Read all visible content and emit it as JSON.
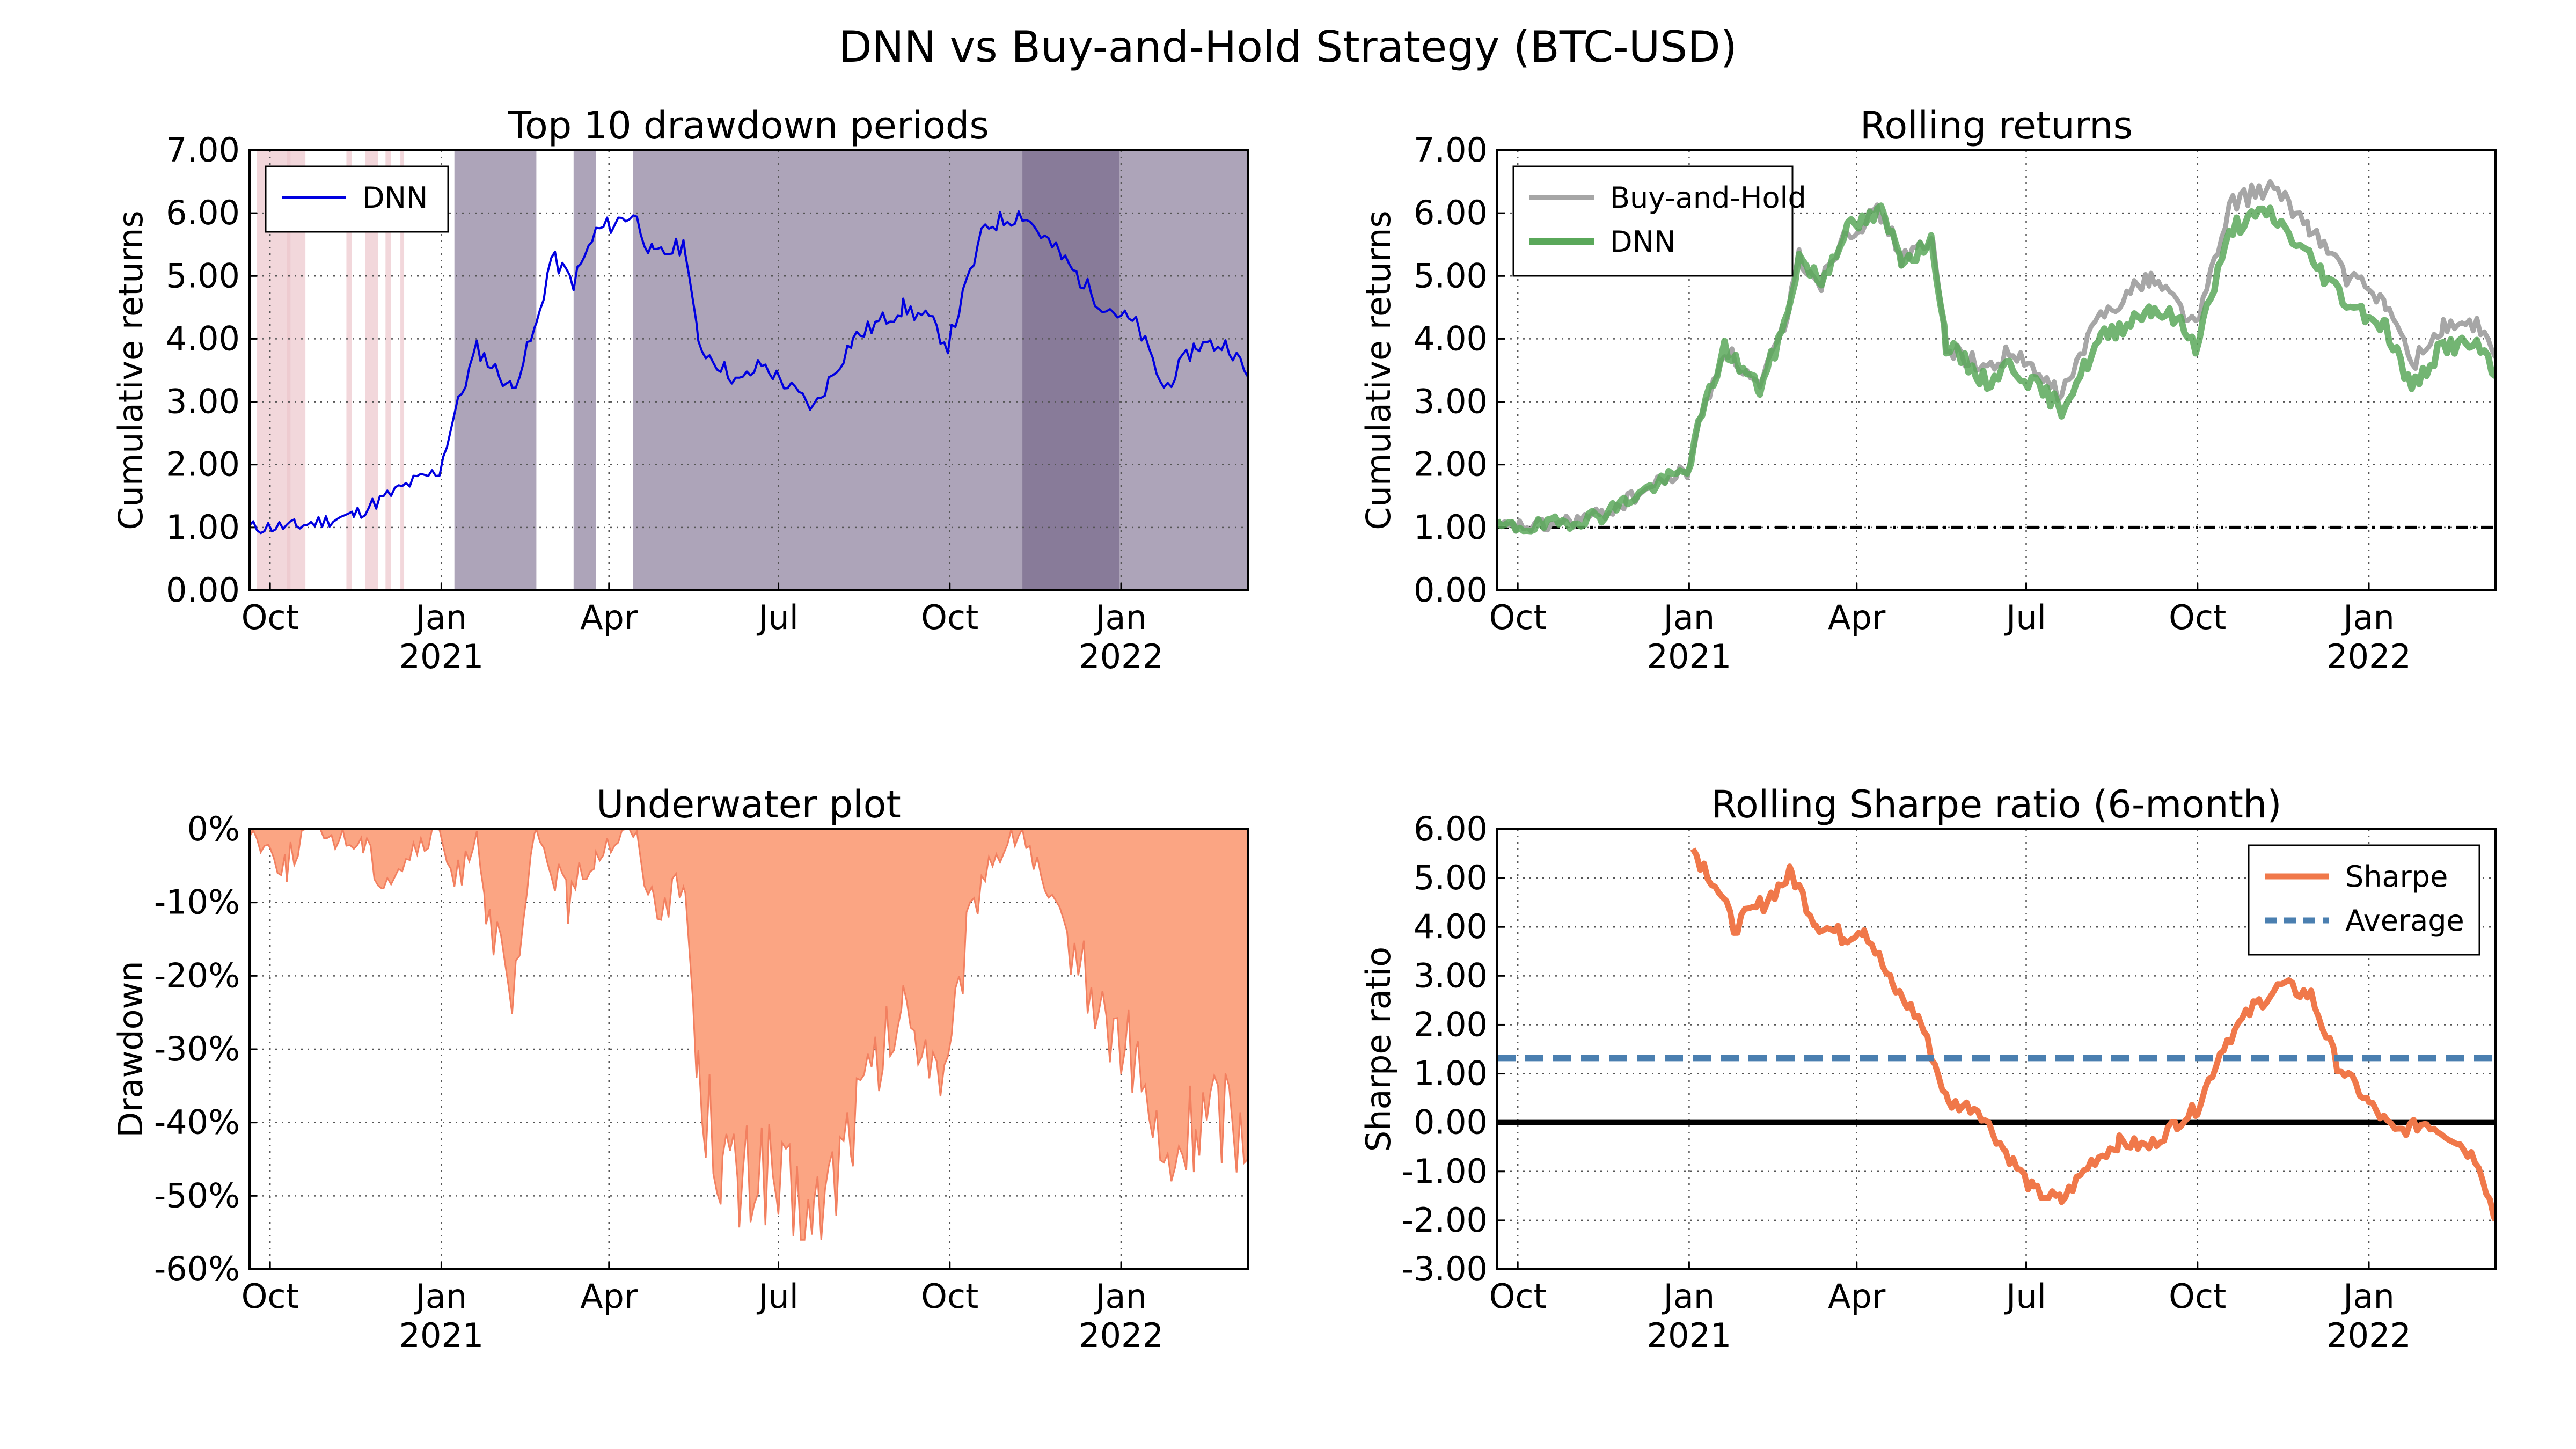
{
  "figure": {
    "title": "DNN vs Buy-and-Hold Strategy (BTC-USD)"
  },
  "x_axis": {
    "month_ticks": [
      "Oct",
      "Jan",
      "Apr",
      "Jul",
      "Oct",
      "Jan"
    ],
    "year_ticks": [
      "2021",
      "2022"
    ]
  },
  "colors": {
    "dnn_line": "#0000e0",
    "buy_hold": "#a6a6a6",
    "dnn_rolling": "#5aa85a",
    "underwater": "#fba583",
    "sharpe": "#f0784a",
    "average": "#4a7fb0",
    "drawdown_shade_light": "#ecc6cc",
    "drawdown_shade_dark": "#6a5a80"
  },
  "chart_data": [
    {
      "id": "drawdown_periods",
      "type": "line",
      "title": "Top 10 drawdown periods",
      "ylabel": "Cumulative returns",
      "xlabel": "",
      "ylim": [
        0,
        7
      ],
      "yticks": [
        "0.00",
        "1.00",
        "2.00",
        "3.00",
        "4.00",
        "5.00",
        "6.00",
        "7.00"
      ],
      "legend": "top-left",
      "series": [
        {
          "name": "DNN",
          "x": [
            "2020-09-20",
            "2020-10-15",
            "2020-11-15",
            "2020-12-15",
            "2020-12-31",
            "2021-01-08",
            "2021-01-20",
            "2021-02-08",
            "2021-02-21",
            "2021-03-01",
            "2021-03-13",
            "2021-03-25",
            "2021-04-14",
            "2021-04-25",
            "2021-05-12",
            "2021-05-19",
            "2021-06-10",
            "2021-06-22",
            "2021-07-20",
            "2021-08-10",
            "2021-09-06",
            "2021-09-20",
            "2021-09-30",
            "2021-10-20",
            "2021-11-09",
            "2021-11-30",
            "2021-12-20",
            "2022-01-10",
            "2022-01-24",
            "2022-02-10",
            "2022-02-28",
            "2022-03-10"
          ],
          "values": [
            1.0,
            1.02,
            1.2,
            1.7,
            1.9,
            2.8,
            3.85,
            3.2,
            4.2,
            5.3,
            4.9,
            5.7,
            6.0,
            5.3,
            5.5,
            3.9,
            3.3,
            3.6,
            2.9,
            4.0,
            4.5,
            4.3,
            3.9,
            5.8,
            6.0,
            5.3,
            4.6,
            4.2,
            3.2,
            3.9,
            3.9,
            3.4
          ]
        }
      ],
      "drawdown_periods": [
        [
          "2020-09-24",
          "2020-10-12"
        ],
        [
          "2020-10-10",
          "2020-10-20"
        ],
        [
          "2020-11-11",
          "2020-11-14"
        ],
        [
          "2020-11-21",
          "2020-11-28"
        ],
        [
          "2020-12-02",
          "2020-12-05"
        ],
        [
          "2020-12-10",
          "2020-12-12"
        ],
        [
          "2021-01-08",
          "2021-02-21"
        ],
        [
          "2021-03-13",
          "2021-03-25"
        ],
        [
          "2021-04-14",
          "2021-12-31"
        ],
        [
          "2021-11-09",
          "2022-03-10"
        ]
      ]
    },
    {
      "id": "rolling_returns",
      "type": "line",
      "title": "Rolling returns",
      "ylabel": "Cumulative returns",
      "xlabel": "",
      "ylim": [
        0,
        7
      ],
      "yticks": [
        "0.00",
        "1.00",
        "2.00",
        "3.00",
        "4.00",
        "5.00",
        "6.00",
        "7.00"
      ],
      "legend": "top-left",
      "baseline": 1.0,
      "series": [
        {
          "name": "Buy-and-Hold",
          "x": [
            "2020-09-20",
            "2020-10-15",
            "2020-11-15",
            "2020-12-15",
            "2020-12-31",
            "2021-01-08",
            "2021-01-20",
            "2021-02-08",
            "2021-02-21",
            "2021-03-01",
            "2021-03-13",
            "2021-03-25",
            "2021-04-14",
            "2021-04-25",
            "2021-05-12",
            "2021-05-19",
            "2021-06-10",
            "2021-06-22",
            "2021-07-20",
            "2021-08-10",
            "2021-09-06",
            "2021-09-20",
            "2021-09-30",
            "2021-10-20",
            "2021-11-09",
            "2021-11-30",
            "2021-12-20",
            "2022-01-10",
            "2022-01-24",
            "2022-02-10",
            "2022-02-28",
            "2022-03-10"
          ],
          "values": [
            1.0,
            1.02,
            1.2,
            1.7,
            1.9,
            2.8,
            3.85,
            3.2,
            4.2,
            5.3,
            4.9,
            5.7,
            6.0,
            5.3,
            5.5,
            3.9,
            3.5,
            3.8,
            3.1,
            4.4,
            5.0,
            4.6,
            4.2,
            6.2,
            6.4,
            5.8,
            5.0,
            4.6,
            3.6,
            4.2,
            4.2,
            3.7
          ]
        },
        {
          "name": "DNN",
          "x": [
            "2020-09-20",
            "2020-10-15",
            "2020-11-15",
            "2020-12-15",
            "2020-12-31",
            "2021-01-08",
            "2021-01-20",
            "2021-02-08",
            "2021-02-21",
            "2021-03-01",
            "2021-03-13",
            "2021-03-25",
            "2021-04-14",
            "2021-04-25",
            "2021-05-12",
            "2021-05-19",
            "2021-06-10",
            "2021-06-22",
            "2021-07-20",
            "2021-08-10",
            "2021-09-06",
            "2021-09-20",
            "2021-09-30",
            "2021-10-20",
            "2021-11-09",
            "2021-11-30",
            "2021-12-20",
            "2022-01-10",
            "2022-01-24",
            "2022-02-10",
            "2022-02-28",
            "2022-03-10"
          ],
          "values": [
            1.0,
            1.02,
            1.2,
            1.7,
            1.9,
            2.8,
            3.85,
            3.2,
            4.2,
            5.3,
            4.9,
            5.7,
            6.0,
            5.3,
            5.5,
            3.9,
            3.3,
            3.6,
            2.9,
            4.0,
            4.5,
            4.3,
            3.9,
            5.8,
            6.0,
            5.3,
            4.6,
            4.2,
            3.2,
            3.9,
            3.9,
            3.4
          ]
        }
      ]
    },
    {
      "id": "underwater",
      "type": "area",
      "title": "Underwater plot",
      "ylabel": "Drawdown",
      "xlabel": "",
      "ylim": [
        -60,
        0
      ],
      "yticks": [
        "-60%",
        "-50%",
        "-40%",
        "-30%",
        "-20%",
        "-10%",
        "0%"
      ],
      "series": [
        {
          "name": "",
          "x": [
            "2020-09-20",
            "2020-10-01",
            "2020-10-10",
            "2020-10-20",
            "2020-11-20",
            "2020-12-01",
            "2020-12-31",
            "2021-01-08",
            "2021-01-20",
            "2021-01-25",
            "2021-02-08",
            "2021-02-21",
            "2021-03-01",
            "2021-03-10",
            "2021-03-25",
            "2021-04-14",
            "2021-04-25",
            "2021-05-12",
            "2021-05-19",
            "2021-06-01",
            "2021-06-10",
            "2021-06-22",
            "2021-07-01",
            "2021-07-20",
            "2021-08-10",
            "2021-09-06",
            "2021-09-20",
            "2021-09-30",
            "2021-10-10",
            "2021-10-20",
            "2021-11-09",
            "2021-11-25",
            "2021-12-10",
            "2021-12-20",
            "2022-01-10",
            "2022-01-24",
            "2022-02-10",
            "2022-02-28",
            "2022-03-10"
          ],
          "values": [
            0,
            -3,
            -5,
            0,
            -2,
            -7,
            0,
            -8,
            0,
            -10,
            -25,
            0,
            -5,
            -10,
            -3,
            0,
            -10,
            -8,
            -35,
            -45,
            -50,
            -45,
            -50,
            -55,
            -40,
            -25,
            -30,
            -35,
            -15,
            -5,
            0,
            -12,
            -18,
            -25,
            -32,
            -48,
            -40,
            -38,
            -45
          ]
        }
      ]
    },
    {
      "id": "rolling_sharpe",
      "type": "line",
      "title": "Rolling Sharpe ratio (6-month)",
      "ylabel": "Sharpe ratio",
      "xlabel": "",
      "ylim": [
        -3,
        6
      ],
      "yticks": [
        "-3.00",
        "-2.00",
        "-1.00",
        "0.00",
        "1.00",
        "2.00",
        "3.00",
        "4.00",
        "5.00",
        "6.00"
      ],
      "legend": "top-right",
      "series": [
        {
          "name": "Sharpe",
          "x": [
            "2021-01-03",
            "2021-01-15",
            "2021-01-25",
            "2021-02-10",
            "2021-02-25",
            "2021-03-10",
            "2021-03-25",
            "2021-04-05",
            "2021-04-20",
            "2021-05-05",
            "2021-05-20",
            "2021-06-05",
            "2021-06-20",
            "2021-07-05",
            "2021-07-20",
            "2021-08-05",
            "2021-08-20",
            "2021-09-05",
            "2021-09-20",
            "2021-10-01",
            "2021-10-15",
            "2021-11-01",
            "2021-11-15",
            "2021-12-01",
            "2021-12-15",
            "2022-01-01",
            "2022-01-15",
            "2022-02-01",
            "2022-02-15",
            "2022-03-01",
            "2022-03-10"
          ],
          "values": [
            5.6,
            4.9,
            4.0,
            4.5,
            5.1,
            4.1,
            3.8,
            4.0,
            2.8,
            2.1,
            0.4,
            0.3,
            -0.6,
            -1.4,
            -1.6,
            -0.8,
            -0.4,
            -0.5,
            0.0,
            0.3,
            1.6,
            2.4,
            2.8,
            2.6,
            1.2,
            0.4,
            -0.2,
            0.0,
            -0.3,
            -0.8,
            -2.0
          ]
        },
        {
          "name": "Average",
          "x": [
            "2020-09-20",
            "2022-03-10"
          ],
          "values": [
            1.32,
            1.32
          ]
        }
      ]
    }
  ]
}
